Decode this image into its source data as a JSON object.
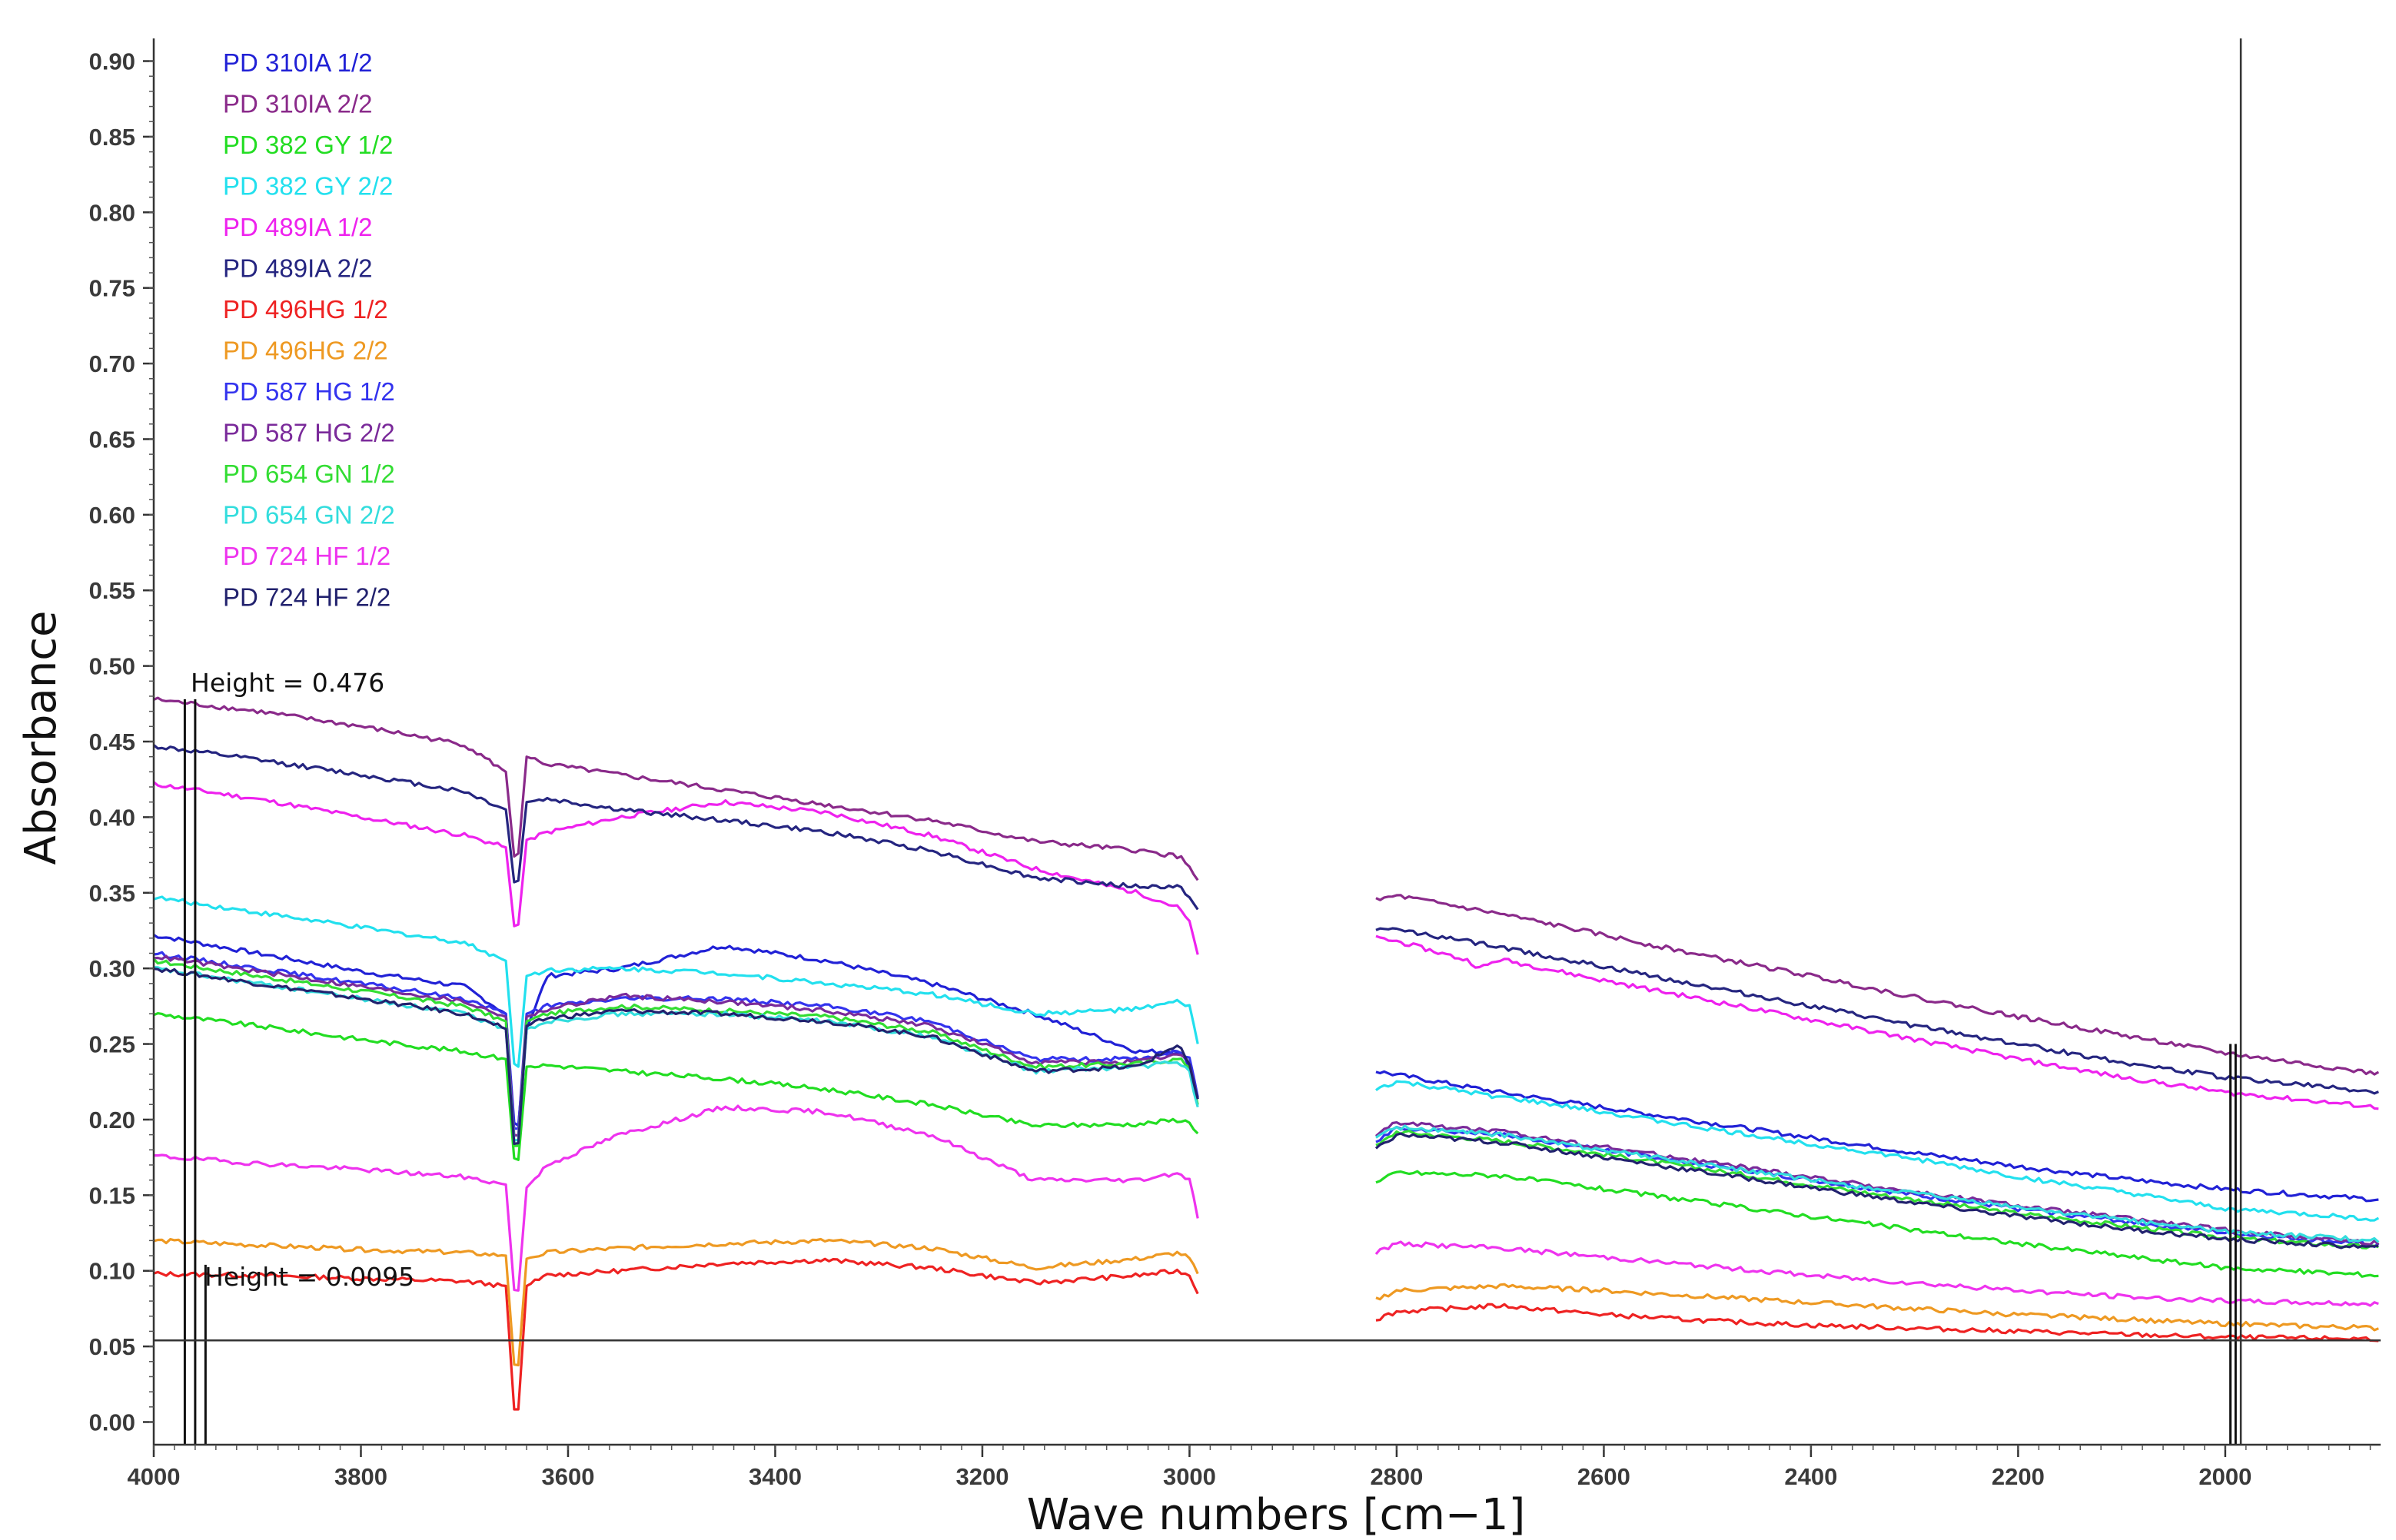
{
  "chart_data": {
    "type": "line",
    "xlabel": "Wave numbers [cm−1]",
    "ylabel": "Absorbance",
    "xlim": [
      4000,
      1850
    ],
    "ylim": [
      -0.015,
      0.915
    ],
    "x_ticks": [
      4000,
      3800,
      3600,
      3400,
      3200,
      3000,
      2800,
      2600,
      2400,
      2200,
      2000
    ],
    "x_tick_labels": [
      "4000",
      "3800",
      "3600",
      "3400",
      "3200",
      "3000",
      "2800",
      "2600",
      "2400",
      "2200",
      "2000"
    ],
    "y_ticks": [
      0.0,
      0.05,
      0.1,
      0.15,
      0.2,
      0.25,
      0.3,
      0.35,
      0.4,
      0.45,
      0.5,
      0.55,
      0.6,
      0.65,
      0.7,
      0.75,
      0.8,
      0.85,
      0.9
    ],
    "y_tick_labels": [
      "0.00",
      "0.05",
      "0.10",
      "0.15",
      "0.20",
      "0.25",
      "0.30",
      "0.35",
      "0.40",
      "0.45",
      "0.50",
      "0.55",
      "0.60",
      "0.65",
      "0.70",
      "0.75",
      "0.80",
      "0.85",
      "0.90"
    ],
    "grid": false,
    "legend_position": "top-left",
    "gap": [
      2990,
      2820
    ],
    "baseline": 0.054,
    "vertical_markers": [
      3970,
      3960,
      1995,
      1990
    ],
    "annotations": [
      {
        "text": "Height = 0.476",
        "x": 3960,
        "y": 0.49
      },
      {
        "text": "Height = 0.0095",
        "x": 3950,
        "y": 0.104
      }
    ],
    "series": [
      {
        "name": "PD 310IA 1/2",
        "color": "#2121d6",
        "x": [
          4000,
          3900,
          3800,
          3700,
          3660,
          3650,
          3640,
          3620,
          3550,
          3450,
          3350,
          3250,
          3150,
          3050,
          3010,
          3000,
          2990,
          2820,
          2700,
          2600,
          2500,
          2400,
          2300,
          2200,
          2100,
          2000,
          1850
        ],
        "y": [
          0.322,
          0.31,
          0.298,
          0.288,
          0.27,
          0.18,
          0.26,
          0.295,
          0.3,
          0.315,
          0.305,
          0.29,
          0.27,
          0.245,
          0.245,
          0.235,
          0.21,
          0.232,
          0.218,
          0.208,
          0.198,
          0.188,
          0.178,
          0.169,
          0.161,
          0.154,
          0.147
        ]
      },
      {
        "name": "PD 310IA 2/2",
        "color": "#8a2a8a",
        "x": [
          4000,
          3900,
          3800,
          3700,
          3660,
          3650,
          3640,
          3620,
          3550,
          3450,
          3350,
          3250,
          3150,
          3050,
          3010,
          3000,
          2990,
          2820,
          2800,
          2700,
          2600,
          2500,
          2400,
          2300,
          2200,
          2100,
          2000,
          1850
        ],
        "y": [
          0.478,
          0.47,
          0.46,
          0.448,
          0.43,
          0.36,
          0.44,
          0.435,
          0.428,
          0.418,
          0.408,
          0.398,
          0.384,
          0.378,
          0.374,
          0.368,
          0.355,
          0.345,
          0.348,
          0.336,
          0.322,
          0.308,
          0.295,
          0.281,
          0.268,
          0.256,
          0.244,
          0.23
        ]
      },
      {
        "name": "PD 382 GY 1/2",
        "color": "#22dd22",
        "x": [
          4000,
          3900,
          3800,
          3700,
          3660,
          3650,
          3640,
          3620,
          3550,
          3450,
          3350,
          3250,
          3150,
          3050,
          3010,
          3000,
          2990,
          2820,
          2800,
          2700,
          2600,
          2500,
          2400,
          2300,
          2200,
          2100,
          2000,
          1850
        ],
        "y": [
          0.27,
          0.262,
          0.253,
          0.245,
          0.24,
          0.158,
          0.235,
          0.236,
          0.232,
          0.227,
          0.22,
          0.21,
          0.196,
          0.197,
          0.2,
          0.198,
          0.19,
          0.158,
          0.165,
          0.163,
          0.154,
          0.145,
          0.136,
          0.127,
          0.118,
          0.11,
          0.102,
          0.097
        ]
      },
      {
        "name": "PD 382 GY 2/2",
        "color": "#22e0ee",
        "x": [
          4000,
          3900,
          3800,
          3700,
          3660,
          3650,
          3640,
          3620,
          3550,
          3450,
          3350,
          3250,
          3150,
          3050,
          3010,
          3000,
          2990,
          2820,
          2800,
          2700,
          2600,
          2500,
          2400,
          2300,
          2200,
          2100,
          2000,
          1850
        ],
        "y": [
          0.347,
          0.337,
          0.327,
          0.317,
          0.305,
          0.22,
          0.295,
          0.299,
          0.3,
          0.297,
          0.29,
          0.283,
          0.27,
          0.273,
          0.278,
          0.275,
          0.243,
          0.22,
          0.225,
          0.215,
          0.205,
          0.194,
          0.184,
          0.174,
          0.162,
          0.152,
          0.141,
          0.134
        ]
      },
      {
        "name": "PD 489IA 1/2",
        "color": "#ee22ee",
        "x": [
          4000,
          3900,
          3800,
          3700,
          3660,
          3650,
          3640,
          3620,
          3550,
          3450,
          3350,
          3250,
          3150,
          3050,
          3010,
          3000,
          2990,
          2820,
          2800,
          2730,
          2720,
          2700,
          2600,
          2500,
          2400,
          2300,
          2200,
          2100,
          2000,
          1850
        ],
        "y": [
          0.422,
          0.412,
          0.4,
          0.388,
          0.38,
          0.315,
          0.385,
          0.39,
          0.4,
          0.41,
          0.403,
          0.388,
          0.366,
          0.35,
          0.34,
          0.33,
          0.305,
          0.32,
          0.318,
          0.305,
          0.3,
          0.306,
          0.292,
          0.279,
          0.266,
          0.253,
          0.24,
          0.228,
          0.218,
          0.208
        ]
      },
      {
        "name": "PD 489IA 2/2",
        "color": "#252580",
        "x": [
          4000,
          3900,
          3800,
          3700,
          3660,
          3650,
          3640,
          3620,
          3550,
          3450,
          3350,
          3250,
          3150,
          3050,
          3010,
          3000,
          2990,
          2820,
          2800,
          2700,
          2600,
          2500,
          2400,
          2300,
          2200,
          2100,
          2000,
          1850
        ],
        "y": [
          0.447,
          0.438,
          0.428,
          0.417,
          0.405,
          0.345,
          0.41,
          0.412,
          0.405,
          0.398,
          0.39,
          0.378,
          0.36,
          0.354,
          0.354,
          0.348,
          0.336,
          0.325,
          0.326,
          0.314,
          0.301,
          0.288,
          0.275,
          0.262,
          0.25,
          0.238,
          0.228,
          0.218
        ]
      },
      {
        "name": "PD 496HG 1/2",
        "color": "#ee2222",
        "x": [
          4000,
          3900,
          3800,
          3700,
          3660,
          3650,
          3640,
          3620,
          3550,
          3450,
          3350,
          3250,
          3150,
          3050,
          3010,
          3000,
          2990,
          2820,
          2800,
          2700,
          2600,
          2500,
          2400,
          2300,
          2200,
          2100,
          2000,
          1850
        ],
        "y": [
          0.098,
          0.097,
          0.095,
          0.093,
          0.09,
          -0.012,
          0.09,
          0.097,
          0.1,
          0.105,
          0.107,
          0.102,
          0.092,
          0.097,
          0.1,
          0.097,
          0.083,
          0.068,
          0.073,
          0.077,
          0.071,
          0.067,
          0.064,
          0.062,
          0.06,
          0.058,
          0.056,
          0.055
        ]
      },
      {
        "name": "PD 496HG 2/2",
        "color": "#ee9922",
        "x": [
          4000,
          3900,
          3800,
          3700,
          3660,
          3650,
          3640,
          3620,
          3550,
          3450,
          3350,
          3250,
          3150,
          3050,
          3010,
          3000,
          2990,
          2820,
          2800,
          2700,
          2600,
          2500,
          2400,
          2300,
          2200,
          2100,
          2000,
          1850
        ],
        "y": [
          0.12,
          0.117,
          0.114,
          0.112,
          0.11,
          0.02,
          0.108,
          0.112,
          0.115,
          0.118,
          0.12,
          0.115,
          0.102,
          0.108,
          0.112,
          0.108,
          0.095,
          0.081,
          0.087,
          0.09,
          0.087,
          0.083,
          0.079,
          0.075,
          0.071,
          0.068,
          0.065,
          0.062
        ]
      },
      {
        "name": "PD 587 HG 1/2",
        "color": "#3333ee",
        "x": [
          4000,
          3900,
          3800,
          3700,
          3660,
          3650,
          3640,
          3620,
          3550,
          3450,
          3350,
          3250,
          3150,
          3050,
          3010,
          3000,
          2990,
          2820,
          2800,
          2700,
          2600,
          2500,
          2400,
          2300,
          2200,
          2100,
          2000,
          1850
        ],
        "y": [
          0.31,
          0.3,
          0.29,
          0.28,
          0.27,
          0.175,
          0.27,
          0.275,
          0.28,
          0.28,
          0.275,
          0.265,
          0.24,
          0.24,
          0.245,
          0.24,
          0.21,
          0.185,
          0.195,
          0.19,
          0.18,
          0.17,
          0.16,
          0.15,
          0.141,
          0.133,
          0.125,
          0.117
        ]
      },
      {
        "name": "PD 587 HG 2/2",
        "color": "#7a2a9a",
        "x": [
          4000,
          3900,
          3800,
          3700,
          3660,
          3650,
          3640,
          3620,
          3550,
          3450,
          3350,
          3250,
          3150,
          3050,
          3010,
          3000,
          2990,
          2820,
          2800,
          2700,
          2600,
          2500,
          2400,
          2300,
          2200,
          2100,
          2000,
          1850
        ],
        "y": [
          0.308,
          0.298,
          0.288,
          0.278,
          0.268,
          0.17,
          0.268,
          0.273,
          0.282,
          0.278,
          0.272,
          0.262,
          0.238,
          0.238,
          0.243,
          0.238,
          0.207,
          0.19,
          0.198,
          0.192,
          0.182,
          0.172,
          0.162,
          0.152,
          0.143,
          0.135,
          0.127,
          0.118
        ]
      },
      {
        "name": "PD 654 GN 1/2",
        "color": "#33dd33",
        "x": [
          4000,
          3900,
          3800,
          3700,
          3660,
          3650,
          3640,
          3620,
          3550,
          3450,
          3350,
          3250,
          3150,
          3050,
          3010,
          3000,
          2990,
          2820,
          2800,
          2700,
          2600,
          2500,
          2400,
          2300,
          2200,
          2100,
          2000,
          1850
        ],
        "y": [
          0.305,
          0.295,
          0.285,
          0.275,
          0.265,
          0.162,
          0.265,
          0.27,
          0.275,
          0.272,
          0.268,
          0.258,
          0.235,
          0.237,
          0.24,
          0.235,
          0.205,
          0.182,
          0.192,
          0.186,
          0.177,
          0.167,
          0.157,
          0.147,
          0.138,
          0.13,
          0.122,
          0.115
        ]
      },
      {
        "name": "PD 654 GN 2/2",
        "color": "#33dddd",
        "x": [
          4000,
          3900,
          3800,
          3700,
          3660,
          3650,
          3640,
          3620,
          3550,
          3450,
          3350,
          3250,
          3150,
          3050,
          3010,
          3000,
          2990,
          2820,
          2800,
          2700,
          2600,
          2500,
          2400,
          2300,
          2200,
          2100,
          2000,
          1850
        ],
        "y": [
          0.3,
          0.29,
          0.28,
          0.27,
          0.26,
          0.168,
          0.26,
          0.265,
          0.27,
          0.27,
          0.265,
          0.255,
          0.232,
          0.235,
          0.238,
          0.232,
          0.202,
          0.188,
          0.195,
          0.19,
          0.18,
          0.17,
          0.16,
          0.151,
          0.142,
          0.134,
          0.126,
          0.12
        ]
      },
      {
        "name": "PD 724 HF 1/2",
        "color": "#ee33ee",
        "x": [
          4000,
          3900,
          3800,
          3700,
          3660,
          3650,
          3640,
          3620,
          3550,
          3450,
          3350,
          3250,
          3150,
          3050,
          3010,
          3000,
          2990,
          2820,
          2800,
          2700,
          2600,
          2500,
          2400,
          2300,
          2200,
          2100,
          2000,
          1850
        ],
        "y": [
          0.176,
          0.171,
          0.167,
          0.162,
          0.157,
          0.07,
          0.155,
          0.17,
          0.19,
          0.208,
          0.205,
          0.19,
          0.16,
          0.16,
          0.165,
          0.16,
          0.13,
          0.112,
          0.118,
          0.115,
          0.109,
          0.103,
          0.097,
          0.092,
          0.087,
          0.083,
          0.08,
          0.078
        ]
      },
      {
        "name": "PD 724 HF 2/2",
        "color": "#22226e",
        "x": [
          4000,
          3900,
          3800,
          3700,
          3660,
          3650,
          3640,
          3620,
          3550,
          3450,
          3350,
          3250,
          3150,
          3050,
          3010,
          3000,
          2990,
          2820,
          2800,
          2700,
          2600,
          2500,
          2400,
          2300,
          2200,
          2100,
          2000,
          1850
        ],
        "y": [
          0.3,
          0.29,
          0.28,
          0.27,
          0.26,
          0.165,
          0.262,
          0.267,
          0.272,
          0.27,
          0.265,
          0.255,
          0.232,
          0.235,
          0.25,
          0.235,
          0.208,
          0.18,
          0.19,
          0.185,
          0.175,
          0.165,
          0.155,
          0.145,
          0.136,
          0.128,
          0.121,
          0.115
        ]
      }
    ]
  }
}
